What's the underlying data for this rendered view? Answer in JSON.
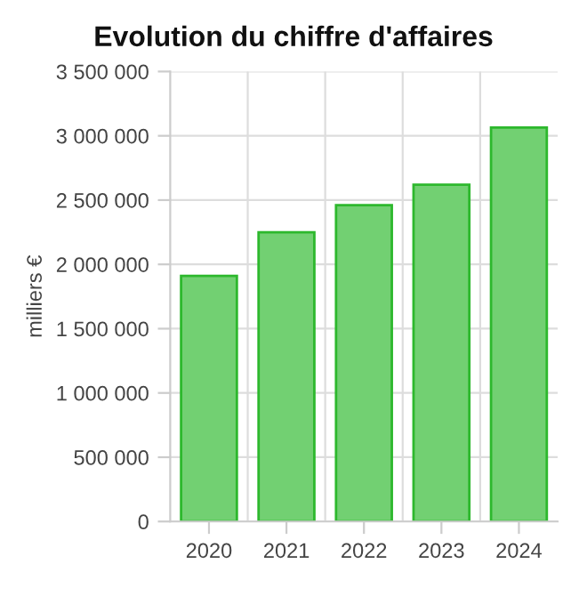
{
  "chart_data": {
    "type": "bar",
    "title": "Evolution du chiffre d'affaires",
    "ylabel": "milliers €",
    "categories": [
      "2020",
      "2021",
      "2022",
      "2023",
      "2024"
    ],
    "series": [
      {
        "color": "#72d072",
        "values": [
          1910000,
          2250000,
          2460000,
          2620000,
          3065000
        ]
      }
    ],
    "ylim": [
      0,
      3500000
    ],
    "yticks": [
      0,
      {
        "value": 500000,
        "label": "500 000"
      },
      {
        "value": 1000000,
        "label": "1 000 000"
      },
      {
        "value": 1500000,
        "label": "1 500 000"
      },
      {
        "value": 2000000,
        "label": "2 000 000"
      },
      {
        "value": 2500000,
        "label": "2 500 000"
      },
      {
        "value": 3000000,
        "label": "3 000 000"
      },
      {
        "value": 3500000,
        "label": "3 500 000"
      }
    ],
    "grid": true,
    "legend": false
  }
}
